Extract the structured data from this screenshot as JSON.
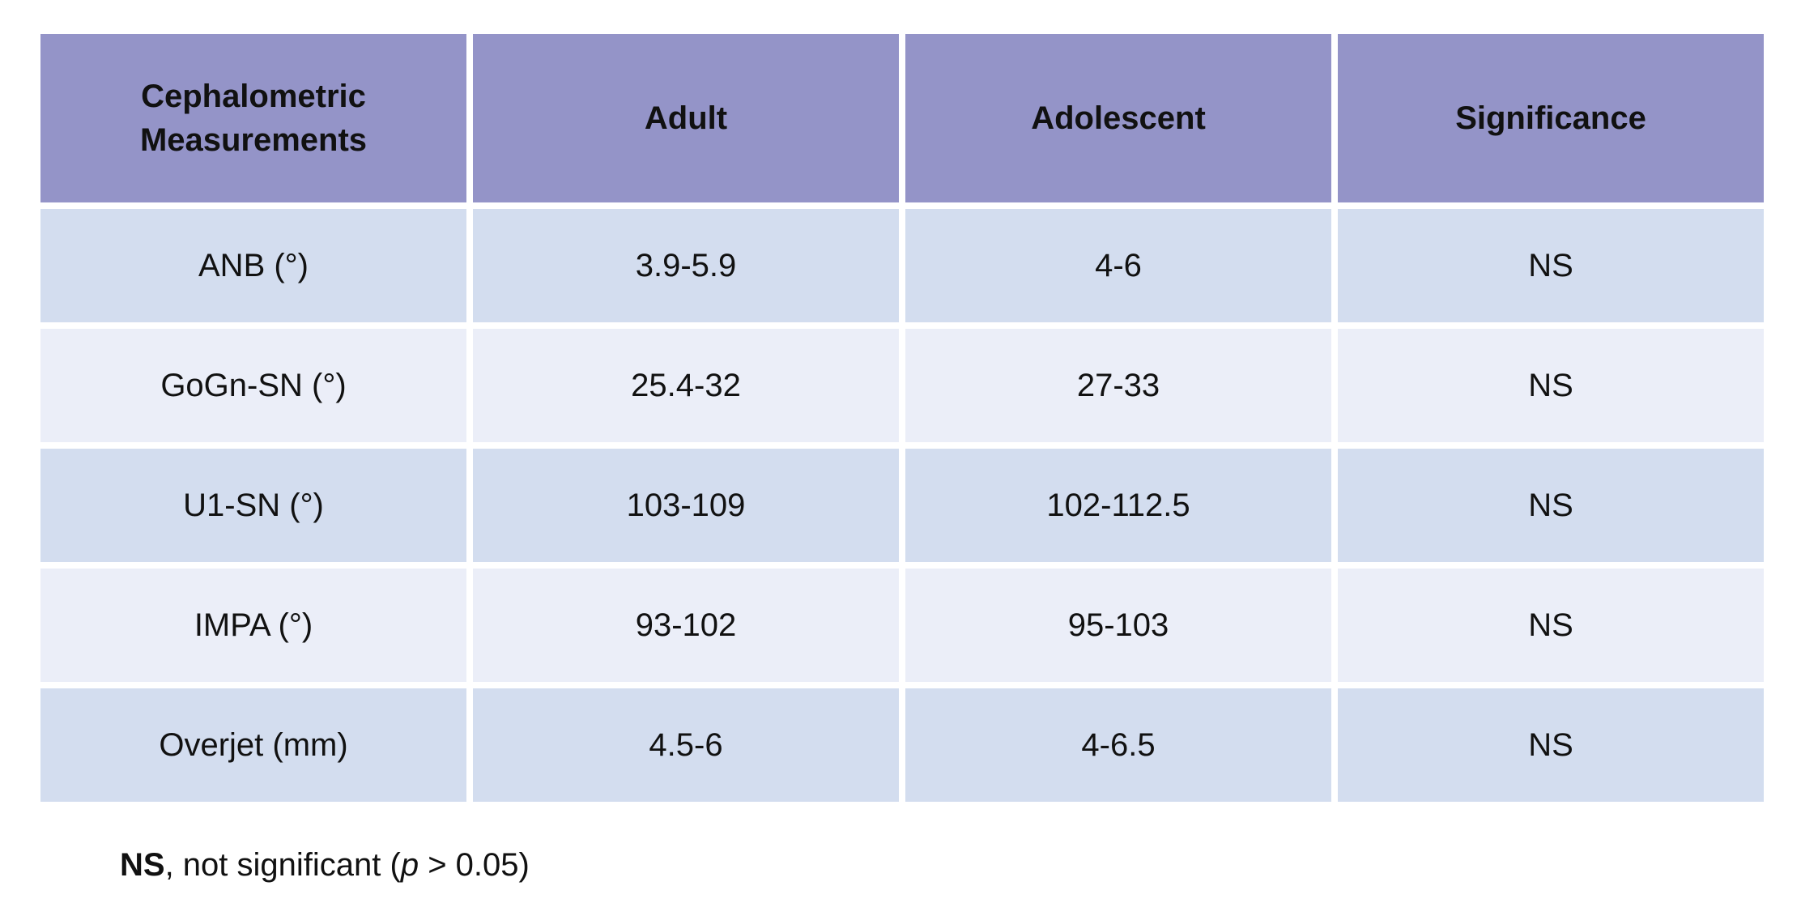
{
  "colors": {
    "header_bg": "#9494c8",
    "row_alt1_bg": "#d3ddef",
    "row_alt2_bg": "#ebeef8",
    "text": "#111111",
    "page_bg": "#ffffff"
  },
  "table": {
    "columns": [
      "Cephalometric Measurements",
      "Adult",
      "Adolescent",
      "Significance"
    ],
    "rows": [
      {
        "measurement": "ANB (°)",
        "adult": "3.9-5.9",
        "adolescent": "4-6",
        "significance": "NS"
      },
      {
        "measurement": "GoGn-SN (°)",
        "adult": "25.4-32",
        "adolescent": "27-33",
        "significance": "NS"
      },
      {
        "measurement": "U1-SN (°)",
        "adult": "103-109",
        "adolescent": "102-112.5",
        "significance": "NS"
      },
      {
        "measurement": "IMPA (°)",
        "adult": "93-102",
        "adolescent": "95-103",
        "significance": "NS"
      },
      {
        "measurement": "Overjet (mm)",
        "adult": "4.5-6",
        "adolescent": "4-6.5",
        "significance": "NS"
      }
    ]
  },
  "footnote": {
    "abbreviation": "NS",
    "text_before_p": ", not significant (",
    "p_symbol": "p",
    "text_after_p": " > 0.05)"
  }
}
